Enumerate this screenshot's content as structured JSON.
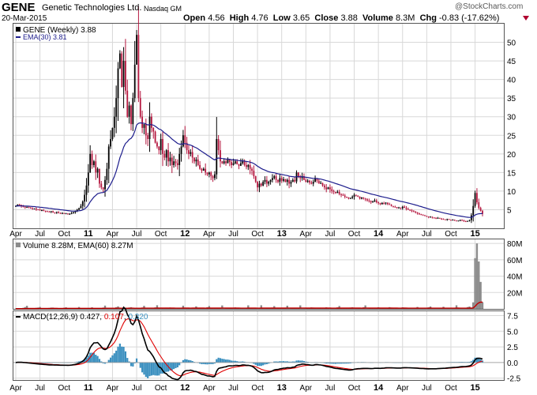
{
  "header": {
    "symbol": "GENE",
    "company": "Genetic Technologies Ltd.",
    "exchange": "Nasdaq GM",
    "date": "20-Mar-2015",
    "watermark": "@StockCharts.com",
    "open_label": "Open",
    "open": "4.56",
    "high_label": "High",
    "high": "4.76",
    "low_label": "Low",
    "low": "3.65",
    "close_label": "Close",
    "close": "3.88",
    "volume_label": "Volume",
    "volume": "8.3M",
    "chg_label": "Chg",
    "chg": "-0.83 (-17.62%)"
  },
  "colors": {
    "down_candle": "#b5173f",
    "up_candle": "#000000",
    "ema_line": "#1c1c8c",
    "volume_bar": "#8c8c8c",
    "volume_ema": "#c00000",
    "macd_line": "#000000",
    "signal_line": "#e00000",
    "histogram": "#3a8fbf",
    "grid": "#d8d8d8"
  },
  "chart_data": [
    {
      "type": "candlestick",
      "panel": "price",
      "series": [
        {
          "name": "GENE (Weekly) 3.88"
        },
        {
          "name": "EMA(30) 3.81"
        }
      ],
      "ylim": [
        0,
        55
      ],
      "yticks": [
        5,
        10,
        15,
        20,
        25,
        30,
        35,
        40,
        45,
        50
      ],
      "yscale": "linear",
      "grid": true,
      "legend_position": "top-left",
      "x_tick_labels": [
        "Apr",
        "Jul",
        "Oct",
        "11",
        "Apr",
        "Jul",
        "Oct",
        "12",
        "Apr",
        "Jul",
        "Oct",
        "13",
        "Apr",
        "Jul",
        "Oct",
        "14",
        "Apr",
        "Jul",
        "Oct",
        "15"
      ],
      "x_tick_weeks": [
        0,
        13,
        26,
        39,
        52,
        65,
        78,
        91,
        104,
        117,
        130,
        143,
        156,
        169,
        182,
        195,
        208,
        221,
        234,
        247
      ],
      "close": [
        6.0,
        6.4,
        6.3,
        6.0,
        5.8,
        5.6,
        5.7,
        5.5,
        5.4,
        5.2,
        5.3,
        5.1,
        5.0,
        4.8,
        4.9,
        4.7,
        4.6,
        4.5,
        4.4,
        4.6,
        4.3,
        4.2,
        4.4,
        4.1,
        4.0,
        4.1,
        3.9,
        4.0,
        3.8,
        3.9,
        4.1,
        4.3,
        4.6,
        5.0,
        5.4,
        6.0,
        7.2,
        9.0,
        11.5,
        15.0,
        20.0,
        17.0,
        18.0,
        15.0,
        16.0,
        12.0,
        11.0,
        10.5,
        13.0,
        16.0,
        22.0,
        24.0,
        27.0,
        30.0,
        35.0,
        43.0,
        47.0,
        38.0,
        45.0,
        37.0,
        30.0,
        33.0,
        28.0,
        35.0,
        44.0,
        52.0,
        35.0,
        30.0,
        27.0,
        28.0,
        25.0,
        24.0,
        30.0,
        27.0,
        26.0,
        23.0,
        22.0,
        21.0,
        24.0,
        20.0,
        19.0,
        21.0,
        18.0,
        19.0,
        17.0,
        18.0,
        17.5,
        17.0,
        20.0,
        22.0,
        25.0,
        23.0,
        21.0,
        20.0,
        20.5,
        19.0,
        18.0,
        18.5,
        17.0,
        16.0,
        15.5,
        16.0,
        15.0,
        14.5,
        15.0,
        14.0,
        13.5,
        14.5,
        24.0,
        21.0,
        18.0,
        17.5,
        18.0,
        17.5,
        18.5,
        17.8,
        17.0,
        17.5,
        18.0,
        17.2,
        16.8,
        17.5,
        18.0,
        17.0,
        16.5,
        17.0,
        16.0,
        15.5,
        14.0,
        12.5,
        11.0,
        12.0,
        11.5,
        12.5,
        13.0,
        12.0,
        12.5,
        13.0,
        13.5,
        14.0,
        13.0,
        12.5,
        13.5,
        12.8,
        13.2,
        12.5,
        13.0,
        12.0,
        12.5,
        13.0,
        12.6,
        15.0,
        14.0,
        13.5,
        14.0,
        13.0,
        12.5,
        12.8,
        12.3,
        12.0,
        12.5,
        13.5,
        12.8,
        12.0,
        12.2,
        11.5,
        11.0,
        10.5,
        11.0,
        10.5,
        10.0,
        9.8,
        9.5,
        9.8,
        9.2,
        9.0,
        8.8,
        8.5,
        8.3,
        8.0,
        8.2,
        8.5,
        9.0,
        8.8,
        8.5,
        8.0,
        8.3,
        8.0,
        7.8,
        7.5,
        7.3,
        7.0,
        7.2,
        7.5,
        7.0,
        6.8,
        6.5,
        6.8,
        6.7,
        6.9,
        6.5,
        6.3,
        6.0,
        5.8,
        5.7,
        5.5,
        5.6,
        5.4,
        5.8,
        5.5,
        5.2,
        5.0,
        4.8,
        4.6,
        4.5,
        4.3,
        4.0,
        3.8,
        3.7,
        3.5,
        3.3,
        3.2,
        3.0,
        3.1,
        2.9,
        2.8,
        2.6,
        2.8,
        2.6,
        2.5,
        2.4,
        2.3,
        2.5,
        2.3,
        2.2,
        2.3,
        2.1,
        2.0,
        2.1,
        2.2,
        2.1,
        1.9,
        1.8,
        2.0,
        2.2,
        3.5,
        6.0,
        9.5,
        7.0,
        5.5,
        4.7,
        3.88
      ],
      "ema30_last": 3.81
    },
    {
      "type": "bar",
      "panel": "volume",
      "series": [
        {
          "name": "Volume 8.28M"
        },
        {
          "name": "EMA(60) 8.27M"
        }
      ],
      "ylim": [
        0,
        85
      ],
      "yticks": [
        20,
        40,
        60,
        80
      ],
      "ytick_labels": [
        "20M",
        "40M",
        "60M",
        "80M"
      ],
      "values_millions_last_weeks": [
        8.0,
        62.0,
        80.0,
        58.0,
        33.0,
        8.28
      ],
      "values_millions_earlier": [
        0.2,
        0.2,
        0.3,
        0.5,
        1.0,
        1.5,
        3.0
      ],
      "volume_ema_last": 8.27
    },
    {
      "type": "line",
      "panel": "macd",
      "series": [
        {
          "name": "MACD(12,26,9) 0.427"
        },
        {
          "name": "0.107"
        },
        {
          "name": "0.320"
        }
      ],
      "legend_values": {
        "macd": "0.427",
        "signal": "0.107",
        "histogram": "0.320"
      },
      "ylim": [
        -2.8,
        8.2
      ],
      "yticks": [
        -2.5,
        0.0,
        2.5,
        5.0,
        7.5
      ],
      "ytick_labels": [
        "-2.5",
        "0.0",
        "2.5",
        "5.0",
        "7.5"
      ]
    }
  ]
}
